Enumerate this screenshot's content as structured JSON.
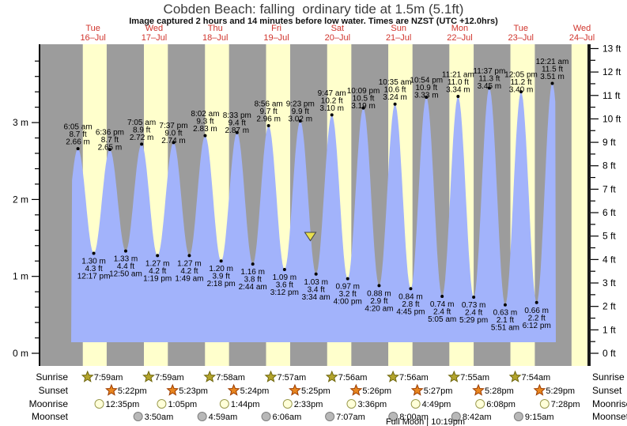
{
  "title": "Cobden Beach: falling  ordinary tide at 1.5m (5.1ft)",
  "subtitle": "Image captured 2 hours and 14 minutes before low water. Times are NZST (UTC +12.0hrs)",
  "legend": {
    "sunrise": "Sunrise",
    "sunset": "Sunset",
    "moonrise": "Moonrise",
    "moonset": "Moonset"
  },
  "full_moon_label": "Full Moon | 10:19pm",
  "colors": {
    "night_band": "#9c9c9c",
    "day_band": "#ffffcc",
    "tide_fill": "#a2b3fb",
    "day_label_red": "#d0342c",
    "annotation_text": "#000000",
    "sunrise_star_fill": "#b3a42c",
    "sunrise_star_stroke": "#6f670f",
    "sunset_star_fill": "#e8861f",
    "sunset_star_stroke": "#9c3c00",
    "moonrise_fill": "#ffffd9",
    "moonrise_stroke": "#99994d",
    "moonset_fill": "#b8b8b8",
    "moonset_stroke": "#7d7d7d",
    "marker_fill": "#e8df4e",
    "marker_stroke": "#444444",
    "axis": "#000000"
  },
  "chart_data": {
    "type": "area",
    "title": "Cobden Beach tide curve",
    "ylabel_left_unit": " m",
    "ylabel_right_unit": " ft",
    "ylim_m": [
      0,
      4
    ],
    "ylim_ft": [
      0,
      13
    ],
    "m_ticks": [
      0,
      1,
      2,
      3
    ],
    "m_minor_step": 0.2,
    "ft_ticks": [
      0,
      1,
      2,
      3,
      4,
      5,
      6,
      7,
      8,
      9,
      10,
      11,
      12,
      13
    ],
    "ft_minor_step": 0.5,
    "days": [
      {
        "weekday": "Tue",
        "date": "16–Jul"
      },
      {
        "weekday": "Wed",
        "date": "17–Jul"
      },
      {
        "weekday": "Thu",
        "date": "18–Jul"
      },
      {
        "weekday": "Fri",
        "date": "19–Jul"
      },
      {
        "weekday": "Sat",
        "date": "20–Jul"
      },
      {
        "weekday": "Sun",
        "date": "21–Jul"
      },
      {
        "weekday": "Mon",
        "date": "22–Jul"
      },
      {
        "weekday": "Tue",
        "date": "23–Jul"
      },
      {
        "weekday": "Wed",
        "date": "24–Jul"
      }
    ],
    "tides": [
      {
        "day": 0,
        "type": "high",
        "time": "6:05 am",
        "ft": 8.7,
        "m": 2.66
      },
      {
        "day": 0,
        "type": "low",
        "time": "12:17 pm",
        "ft": 4.3,
        "m": 1.3
      },
      {
        "day": 0,
        "type": "high",
        "time": "6:36 pm",
        "ft": 8.7,
        "m": 2.65
      },
      {
        "day": 1,
        "type": "low",
        "time": "12:50 am",
        "ft": 4.4,
        "m": 1.33
      },
      {
        "day": 1,
        "type": "high",
        "time": "7:05 am",
        "ft": 8.9,
        "m": 2.72
      },
      {
        "day": 1,
        "type": "low",
        "time": "1:19 pm",
        "ft": 4.2,
        "m": 1.27
      },
      {
        "day": 1,
        "type": "high",
        "time": "7:37 pm",
        "ft": 9.0,
        "m": 2.74
      },
      {
        "day": 2,
        "type": "low",
        "time": "1:49 am",
        "ft": 4.2,
        "m": 1.27
      },
      {
        "day": 2,
        "type": "high",
        "time": "8:02 am",
        "ft": 9.3,
        "m": 2.83
      },
      {
        "day": 2,
        "type": "low",
        "time": "2:18 pm",
        "ft": 3.9,
        "m": 1.2
      },
      {
        "day": 2,
        "type": "high",
        "time": "8:33 pm",
        "ft": 9.4,
        "m": 2.87
      },
      {
        "day": 3,
        "type": "low",
        "time": "2:44 am",
        "ft": 3.8,
        "m": 1.16
      },
      {
        "day": 3,
        "type": "high",
        "time": "8:56 am",
        "ft": 9.7,
        "m": 2.96
      },
      {
        "day": 3,
        "type": "low",
        "time": "3:12 pm",
        "ft": 3.6,
        "m": 1.09
      },
      {
        "day": 3,
        "type": "high",
        "time": "9:23 pm",
        "ft": 9.9,
        "m": 3.02
      },
      {
        "day": 4,
        "type": "low",
        "time": "3:34 am",
        "ft": 3.4,
        "m": 1.03
      },
      {
        "day": 4,
        "type": "high",
        "time": "9:47 am",
        "ft": 10.2,
        "m": 3.1
      },
      {
        "day": 4,
        "type": "low",
        "time": "4:00 pm",
        "ft": 3.2,
        "m": 0.97
      },
      {
        "day": 4,
        "type": "high",
        "time": "10:09 pm",
        "ft": 10.5,
        "m": 3.19
      },
      {
        "day": 5,
        "type": "low",
        "time": "4:20 am",
        "ft": 2.9,
        "m": 0.88
      },
      {
        "day": 5,
        "type": "high",
        "time": "10:35 am",
        "ft": 10.6,
        "m": 3.24
      },
      {
        "day": 5,
        "type": "low",
        "time": "4:45 pm",
        "ft": 2.8,
        "m": 0.84
      },
      {
        "day": 5,
        "type": "high",
        "time": "10:54 pm",
        "ft": 10.9,
        "m": 3.33
      },
      {
        "day": 6,
        "type": "low",
        "time": "5:05 am",
        "ft": 2.4,
        "m": 0.74
      },
      {
        "day": 6,
        "type": "high",
        "time": "11:21 am",
        "ft": 11.0,
        "m": 3.34
      },
      {
        "day": 6,
        "type": "low",
        "time": "5:29 pm",
        "ft": 2.4,
        "m": 0.73
      },
      {
        "day": 6,
        "type": "high",
        "time": "11:37 pm",
        "ft": 11.3,
        "m": 3.45
      },
      {
        "day": 7,
        "type": "low",
        "time": "5:51 am",
        "ft": 2.1,
        "m": 0.63
      },
      {
        "day": 7,
        "type": "high",
        "time": "12:05 pm",
        "ft": 11.2,
        "m": 3.4
      },
      {
        "day": 7,
        "type": "low",
        "time": "6:12 pm",
        "ft": 2.2,
        "m": 0.66
      },
      {
        "day": 8,
        "type": "high",
        "time": "12:21 am",
        "ft": 11.5,
        "m": 3.51
      }
    ],
    "current_marker": {
      "level_m": 1.5,
      "state": "falling",
      "minutes_before_low": 134
    },
    "sun_moon": {
      "sunrise": [
        {
          "day": 0,
          "time": "7:59am"
        },
        {
          "day": 1,
          "time": "7:59am"
        },
        {
          "day": 2,
          "time": "7:58am"
        },
        {
          "day": 3,
          "time": "7:57am"
        },
        {
          "day": 4,
          "time": "7:56am"
        },
        {
          "day": 5,
          "time": "7:56am"
        },
        {
          "day": 6,
          "time": "7:55am"
        },
        {
          "day": 7,
          "time": "7:54am"
        }
      ],
      "sunset": [
        {
          "day": 0,
          "time": "5:22pm"
        },
        {
          "day": 1,
          "time": "5:23pm"
        },
        {
          "day": 2,
          "time": "5:24pm"
        },
        {
          "day": 3,
          "time": "5:25pm"
        },
        {
          "day": 4,
          "time": "5:26pm"
        },
        {
          "day": 5,
          "time": "5:27pm"
        },
        {
          "day": 6,
          "time": "5:28pm"
        },
        {
          "day": 7,
          "time": "5:29pm"
        }
      ],
      "moonrise": [
        {
          "day": 0,
          "time": "12:35pm"
        },
        {
          "day": 1,
          "time": "1:05pm"
        },
        {
          "day": 2,
          "time": "1:44pm"
        },
        {
          "day": 3,
          "time": "2:33pm"
        },
        {
          "day": 4,
          "time": "3:36pm"
        },
        {
          "day": 5,
          "time": "4:49pm"
        },
        {
          "day": 6,
          "time": "6:08pm"
        },
        {
          "day": 7,
          "time": "7:28pm"
        }
      ],
      "moonset": [
        {
          "day": 1,
          "time": "3:50am"
        },
        {
          "day": 2,
          "time": "4:59am"
        },
        {
          "day": 3,
          "time": "6:06am"
        },
        {
          "day": 4,
          "time": "7:07am"
        },
        {
          "day": 5,
          "time": "8:00am"
        },
        {
          "day": 6,
          "time": "8:42am"
        },
        {
          "day": 7,
          "time": "9:15am"
        }
      ]
    }
  }
}
